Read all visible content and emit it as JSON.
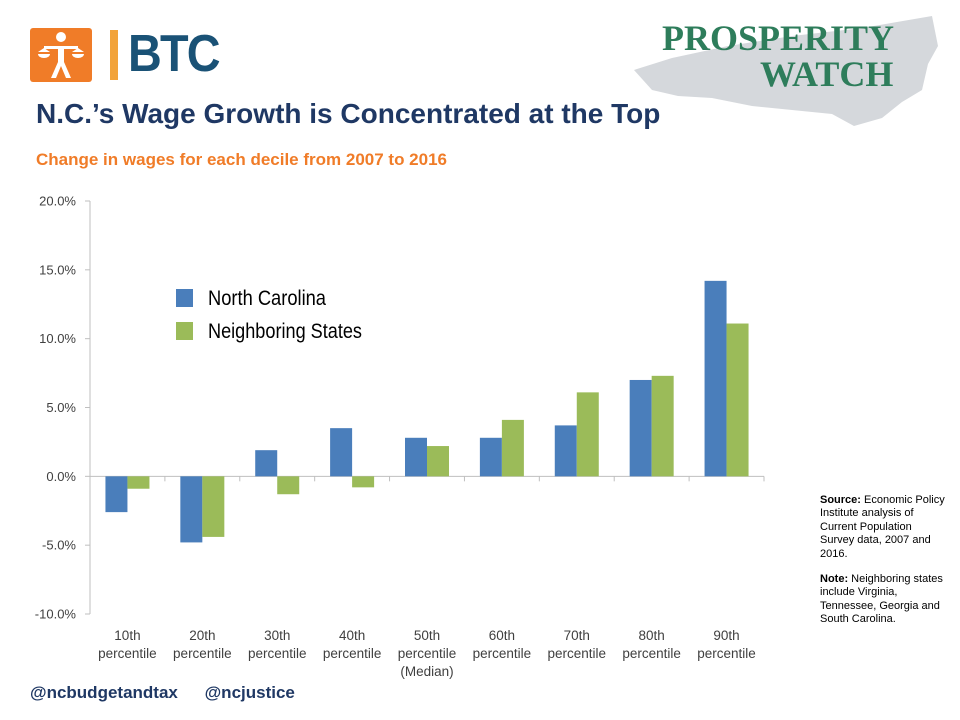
{
  "header": {
    "logo_text": "BTC",
    "watch_line1": "PROSPERITY",
    "watch_line2": "WATCH"
  },
  "title": "N.C.’s Wage Growth is Concentrated at the Top",
  "subtitle": "Change in wages for each decile from 2007 to 2016",
  "colors": {
    "navy": "#1f3864",
    "orange": "#f07c28",
    "logo_blue": "#1a5276",
    "logo_orange": "#f2a33a",
    "watch_green": "#2e7d5b",
    "nc_blue": "#4a7ebb",
    "neighbor_green": "#9bbb59",
    "map_gray": "#d5d8dc",
    "axis_text": "#404040"
  },
  "chart_data": {
    "type": "bar",
    "categories": [
      [
        "10th",
        "percentile"
      ],
      [
        "20th",
        "percentile"
      ],
      [
        "30th",
        "percentile"
      ],
      [
        "40th",
        "percentile"
      ],
      [
        "50th",
        "percentile",
        "(Median)"
      ],
      [
        "60th",
        "percentile"
      ],
      [
        "70th",
        "percentile"
      ],
      [
        "80th",
        "percentile"
      ],
      [
        "90th",
        "percentile"
      ]
    ],
    "series": [
      {
        "name": "North Carolina",
        "values": [
          -2.6,
          -4.8,
          1.9,
          3.5,
          2.8,
          2.8,
          3.7,
          7.0,
          14.2
        ]
      },
      {
        "name": "Neighboring States",
        "values": [
          -0.9,
          -4.4,
          -1.3,
          -0.8,
          2.2,
          4.1,
          6.1,
          7.3,
          11.1
        ]
      }
    ],
    "yticks": [
      "20.0%",
      "15.0%",
      "10.0%",
      "5.0%",
      "0.0%",
      "-5.0%",
      "-10.0%"
    ],
    "ylim": [
      -10,
      20
    ],
    "legend_position": "upper-left",
    "grid": false
  },
  "notes": {
    "source_label": "Source:",
    "source_text": " Economic Policy Institute analysis of Current Population Survey data, 2007 and 2016.",
    "note_label": "Note:",
    "note_text": " Neighboring states include Virginia, Tennessee, Georgia and South Carolina."
  },
  "footer": {
    "handle1": "@ncbudgetandtax",
    "handle2": "@ncjustice"
  }
}
